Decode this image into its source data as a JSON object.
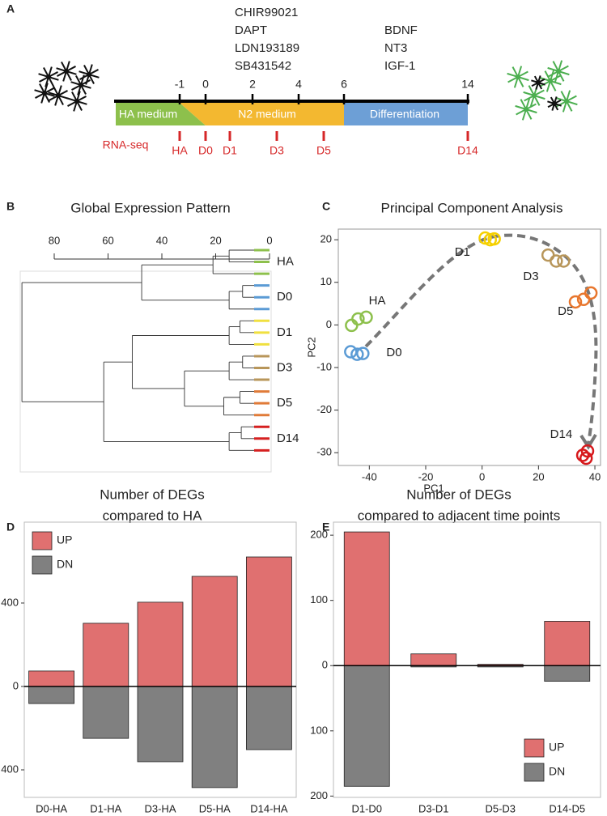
{
  "chart_data": [
    {
      "type": "timeline",
      "panel": "A",
      "treatments": [
        [
          "CHIR99021",
          "DAPT",
          "LDN193189",
          "SB431542"
        ],
        [
          "BDNF",
          "NT3",
          "IGF-1"
        ]
      ],
      "days": [
        -1,
        0,
        2,
        4,
        6,
        14
      ],
      "phases": [
        {
          "name": "HA medium",
          "color": "#8dc04c"
        },
        {
          "name": "N2 medium",
          "color": "#f3b830"
        },
        {
          "name": "Differentiation",
          "color": "#6d9fd6"
        }
      ],
      "sampling_label": "RNA-seq",
      "samples": [
        "HA",
        "D0",
        "D1",
        "D3",
        "D5",
        "D14"
      ],
      "sample_color": "#d62728"
    },
    {
      "type": "dendrogram",
      "panel": "B",
      "title": "Global Expression Pattern",
      "xlim": [
        80,
        0
      ],
      "xticks": [
        80,
        60,
        40,
        20,
        0
      ],
      "leaves": [
        {
          "name": "HA",
          "color": "#8dc04c",
          "heights": [
            15,
            21
          ]
        },
        {
          "name": "D0",
          "color": "#5b9bd5",
          "heights": [
            10,
            15
          ]
        },
        {
          "name": "D1",
          "color": "#f0e040",
          "heights": [
            11,
            15
          ]
        },
        {
          "name": "D3",
          "color": "#b8965a",
          "heights": [
            10,
            15
          ]
        },
        {
          "name": "D5",
          "color": "#e07b39",
          "heights": [
            11,
            17
          ]
        },
        {
          "name": "D14",
          "color": "#d62020",
          "heights": [
            10.5,
            15
          ]
        }
      ],
      "joins": [
        {
          "left": 0,
          "right": 1,
          "height": 47.5
        },
        {
          "left": 3,
          "right": 4,
          "height": 31.6
        },
        {
          "left": 2,
          "right": 7,
          "height": 51
        },
        {
          "left": 8,
          "right": 5,
          "height": 61.6
        },
        {
          "left": 6,
          "right": 9,
          "height": 92
        }
      ]
    },
    {
      "type": "scatter",
      "panel": "C",
      "title": "Principal Component Analysis",
      "xlabel": "PC1",
      "ylabel": "PC2",
      "xlim": [
        -51,
        42
      ],
      "ylim": [
        -33,
        22.5
      ],
      "xticks": [
        -40,
        -20,
        0,
        20,
        40
      ],
      "yticks": [
        -30,
        -20,
        -10,
        0,
        10,
        20
      ],
      "series": [
        {
          "name": "HA",
          "color": "#8dc04c",
          "x": [
            -46.3,
            -44,
            -41.1
          ],
          "y": [
            -0.1,
            1.4,
            1.8
          ]
        },
        {
          "name": "D0",
          "color": "#5b9bd5",
          "x": [
            -46.6,
            -44.3,
            -42.3
          ],
          "y": [
            -6.3,
            -6.9,
            -6.7
          ]
        },
        {
          "name": "D1",
          "color": "#f5d000",
          "x": [
            1.1,
            2.9,
            4.3
          ],
          "y": [
            20.4,
            20,
            20.2
          ]
        },
        {
          "name": "D3",
          "color": "#b8965a",
          "x": [
            23.4,
            26.3,
            28.9
          ],
          "y": [
            16.4,
            15,
            15
          ]
        },
        {
          "name": "D5",
          "color": "#e8762d",
          "x": [
            33.1,
            36,
            38.6
          ],
          "y": [
            5.4,
            6,
            7.5
          ]
        },
        {
          "name": "D14",
          "color": "#d7191c",
          "x": [
            35.7,
            37.4,
            36.9
          ],
          "y": [
            -30.6,
            -29.6,
            -31.3
          ]
        }
      ]
    },
    {
      "type": "bar",
      "panel": "D",
      "title": [
        "Number of DEGs",
        "compared to HA"
      ],
      "categories": [
        "D0-HA",
        "D1-HA",
        "D3-HA",
        "D5-HA",
        "D14-HA"
      ],
      "series": [
        {
          "name": "UP",
          "color": "#e07070",
          "values": [
            74,
            303,
            404,
            528,
            621
          ]
        },
        {
          "name": "DN",
          "color": "#808080",
          "values": [
            -82,
            -249,
            -361,
            -485,
            -303
          ]
        }
      ],
      "ylim": [
        -532,
        788
      ],
      "yticks": [
        {
          "value": -400,
          "label": "400"
        },
        0,
        400
      ],
      "legend": "upper left"
    },
    {
      "type": "bar",
      "panel": "E",
      "title": [
        "Number of DEGs",
        "compared to adjacent time points"
      ],
      "categories": [
        "D1-D0",
        "D3-D1",
        "D5-D3",
        "D14-D5"
      ],
      "series": [
        {
          "name": "UP",
          "color": "#e07070",
          "values": [
            205,
            18,
            2,
            68
          ]
        },
        {
          "name": "DN",
          "color": "#808080",
          "values": [
            -185,
            -2,
            -2,
            -24
          ]
        }
      ],
      "ylim": [
        -202,
        220
      ],
      "yticks": [
        {
          "value": -200,
          "label": "200"
        },
        {
          "value": -100,
          "label": "100"
        },
        0,
        100,
        200
      ],
      "legend": "lower right"
    }
  ]
}
